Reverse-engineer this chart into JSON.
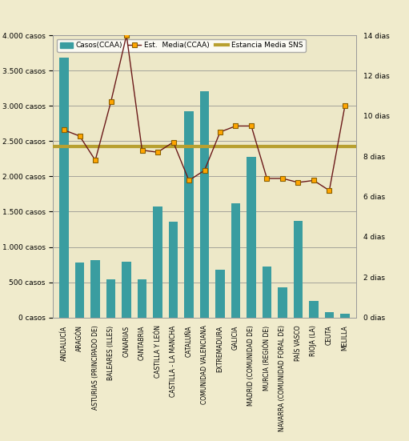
{
  "categories": [
    "ANDALUCÍA",
    "ARAGÓN",
    "ASTURIAS (PRINCIPADO DE)",
    "BALEARES (ILLES)",
    "CANARIAS",
    "CANTABRIA",
    "CASTILLA Y LEÓN",
    "CASTILLA - LA MANCHA",
    "CATALUÑA",
    "COMUNIDAD VALENCIANA",
    "EXTREMADURA",
    "GALICIA",
    "MADRID (COMUNIDAD DE)",
    "MURCIA (REGIÓN DE)",
    "NAVARRA (COMUNIDAD FORAL DE)",
    "PAÍS VASCO",
    "RIOJA (LA)",
    "CEUTA",
    "MELILLA"
  ],
  "bar_values": [
    3680,
    780,
    810,
    540,
    790,
    540,
    1570,
    1360,
    2920,
    3210,
    680,
    1620,
    2280,
    720,
    430,
    1370,
    240,
    80,
    55
  ],
  "line_values": [
    9.3,
    9.0,
    7.8,
    10.7,
    14.0,
    8.3,
    8.2,
    8.7,
    6.8,
    7.3,
    9.2,
    9.5,
    9.5,
    6.9,
    6.9,
    6.7,
    6.8,
    6.3,
    10.5
  ],
  "sns_line_value": 8.5,
  "bar_color": "#3a9da0",
  "line_color": "#6B1A1A",
  "line_marker_facecolor": "#FFA500",
  "line_marker_edgecolor": "#8B6000",
  "sns_line_color": "#b8a030",
  "background_color": "#f0ebcc",
  "plot_bg_color": "#ede8c8",
  "ylim_left": [
    0,
    4000
  ],
  "ylim_right": [
    0,
    14
  ],
  "yticks_left": [
    0,
    500,
    1000,
    1500,
    2000,
    2500,
    3000,
    3500,
    4000
  ],
  "ytick_labels_left": [
    "0 casos",
    "500 casos",
    "1.000 casos",
    "1.500 casos",
    "2.000 casos",
    "2.500 casos",
    "3.000 casos",
    "3.500 casos",
    "4.000 casos"
  ],
  "yticks_right": [
    0,
    2,
    4,
    6,
    8,
    10,
    12,
    14
  ],
  "ytick_labels_right": [
    "0 dias",
    "2 dias",
    "4 dias",
    "6 dias",
    "8 dias",
    "10 dias",
    "12 dias",
    "14 dias"
  ],
  "legend_bar_label": "Casos(CCAA)",
  "legend_line_label": "Est.  Media(CCAA)",
  "legend_sns_label": "Estancia Media SNS",
  "grid_color": "#888888",
  "figsize": [
    5.11,
    5.51
  ],
  "dpi": 100
}
